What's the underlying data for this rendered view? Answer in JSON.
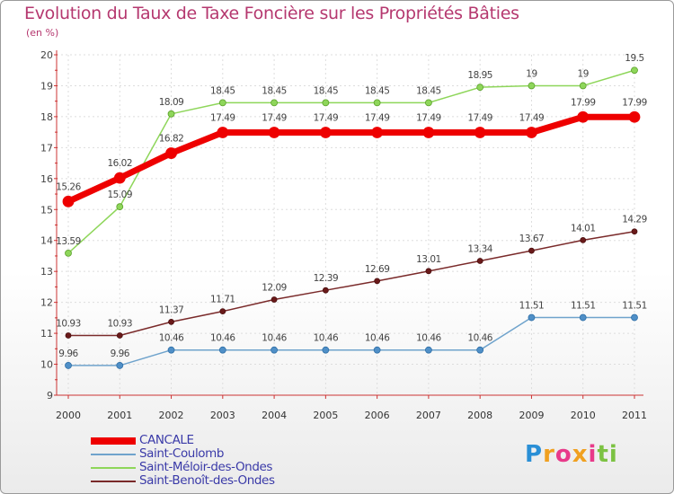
{
  "title": "Evolution du Taux de Taxe Foncière sur les Propriétés Bâties",
  "unit_label": "(en %)",
  "logo_text": "Proxiti",
  "chart_data": {
    "type": "line",
    "title": "Evolution du Taux de Taxe Foncière sur les Propriétés Bâties",
    "ylabel": "(en %)",
    "xlabel": "",
    "x": [
      "2000",
      "2001",
      "2002",
      "2003",
      "2004",
      "2005",
      "2006",
      "2007",
      "2008",
      "2009",
      "2010",
      "2011"
    ],
    "ylim": [
      9,
      20
    ],
    "yticks": [
      "9",
      "10",
      "11",
      "12",
      "13",
      "14",
      "15",
      "16",
      "17",
      "18",
      "19",
      "20"
    ],
    "grid": true,
    "legend_position": "bottom-left",
    "series": [
      {
        "name": "CANCALE",
        "color": "#ee0000",
        "values": [
          15.26,
          16.02,
          16.82,
          17.49,
          17.49,
          17.49,
          17.49,
          17.49,
          17.49,
          17.49,
          17.99,
          17.99
        ],
        "labels": [
          "15.26",
          "16.02",
          "16.82",
          "17.49",
          "17.49",
          "17.49",
          "17.49",
          "17.49",
          "17.49",
          "17.49",
          "17.99",
          "17.99"
        ]
      },
      {
        "name": "Saint-Coulomb",
        "color": "#6fa3cc",
        "values": [
          9.96,
          9.96,
          10.46,
          10.46,
          10.46,
          10.46,
          10.46,
          10.46,
          10.46,
          11.51,
          11.51,
          11.51
        ],
        "labels": [
          "9.96",
          "9.96",
          "10.46",
          "10.46",
          "10.46",
          "10.46",
          "10.46",
          "10.46",
          "10.46",
          "11.51",
          "11.51",
          "11.51"
        ]
      },
      {
        "name": "Saint-Méloir-des-Ondes",
        "color": "#8ed65a",
        "values": [
          13.59,
          15.09,
          18.09,
          18.45,
          18.45,
          18.45,
          18.45,
          18.45,
          18.95,
          19,
          19,
          19.5
        ],
        "labels": [
          "13.59",
          "15.09",
          "18.09",
          "18.45",
          "18.45",
          "18.45",
          "18.45",
          "18.45",
          "18.95",
          "19",
          "19",
          "19.5"
        ]
      },
      {
        "name": "Saint-Benoît-des-Ondes",
        "color": "#7a2a2a",
        "values": [
          10.93,
          10.93,
          11.37,
          11.71,
          12.09,
          12.39,
          12.69,
          13.01,
          13.34,
          13.67,
          14.01,
          14.29
        ],
        "labels": [
          "10.93",
          "10.93",
          "11.37",
          "11.71",
          "12.09",
          "12.39",
          "12.69",
          "13.01",
          "13.34",
          "13.67",
          "14.01",
          "14.29"
        ]
      }
    ]
  }
}
